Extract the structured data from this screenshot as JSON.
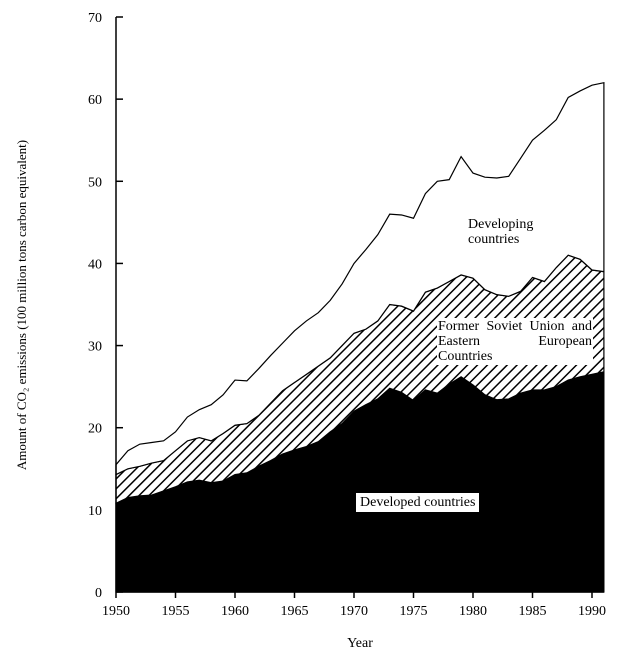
{
  "chart_data": {
    "type": "stacked-area",
    "x_label": "Year",
    "y_label": "Amount of CO₂ emissions (100 million tons carbon equivalent)",
    "x": [
      1950,
      1951,
      1952,
      1953,
      1954,
      1955,
      1956,
      1957,
      1958,
      1959,
      1960,
      1961,
      1962,
      1963,
      1964,
      1965,
      1966,
      1967,
      1968,
      1969,
      1970,
      1971,
      1972,
      1973,
      1974,
      1975,
      1976,
      1977,
      1978,
      1979,
      1980,
      1981,
      1982,
      1983,
      1984,
      1985,
      1986,
      1987,
      1988,
      1989,
      1990,
      1991
    ],
    "xlim": [
      1950,
      1991
    ],
    "xticks": [
      1950,
      1955,
      1960,
      1965,
      1970,
      1975,
      1980,
      1985,
      1990
    ],
    "ylim": [
      0,
      70
    ],
    "yticks": [
      0,
      10,
      20,
      30,
      40,
      50,
      60,
      70
    ],
    "series": [
      {
        "name": "Developed countries",
        "color": "#000000",
        "values": [
          10.8,
          11.5,
          11.7,
          11.8,
          12.3,
          12.8,
          13.4,
          13.6,
          13.3,
          13.5,
          14.3,
          14.5,
          15.3,
          16.0,
          16.8,
          17.3,
          17.7,
          18.3,
          19.5,
          20.5,
          22.0,
          22.8,
          23.5,
          24.8,
          24.3,
          23.3,
          24.6,
          24.2,
          25.3,
          26.2,
          25.2,
          24.0,
          23.4,
          23.5,
          24.2,
          24.6,
          24.6,
          25.0,
          25.8,
          26.2,
          26.5,
          26.8
        ]
      },
      {
        "name": "Former Soviet Union and Eastern European Countries",
        "color": "#000000",
        "pattern": "diagonal-hatch",
        "values": [
          3.5,
          3.5,
          3.6,
          3.9,
          3.7,
          4.4,
          5.0,
          5.2,
          5.1,
          5.8,
          6.0,
          6.0,
          6.2,
          7.0,
          7.7,
          8.2,
          8.8,
          9.2,
          9.0,
          9.5,
          9.5,
          9.2,
          9.5,
          10.2,
          10.5,
          10.9,
          11.9,
          12.8,
          12.5,
          12.4,
          13.0,
          12.8,
          12.8,
          12.5,
          12.4,
          13.7,
          13.2,
          14.5,
          15.2,
          14.3,
          12.7,
          12.2
        ]
      },
      {
        "name": "Developing countries",
        "color": "#ffffff",
        "values": [
          1.2,
          2.2,
          2.7,
          2.5,
          2.4,
          2.3,
          2.9,
          3.4,
          4.4,
          4.7,
          5.5,
          5.2,
          5.7,
          5.8,
          5.8,
          6.3,
          6.5,
          6.5,
          7.0,
          7.5,
          8.5,
          9.7,
          10.5,
          11.0,
          11.1,
          11.3,
          12.0,
          13.0,
          12.4,
          14.4,
          12.8,
          13.7,
          14.2,
          14.6,
          16.2,
          16.7,
          18.4,
          18.0,
          19.2,
          20.5,
          22.5,
          23.0
        ]
      }
    ]
  }
}
